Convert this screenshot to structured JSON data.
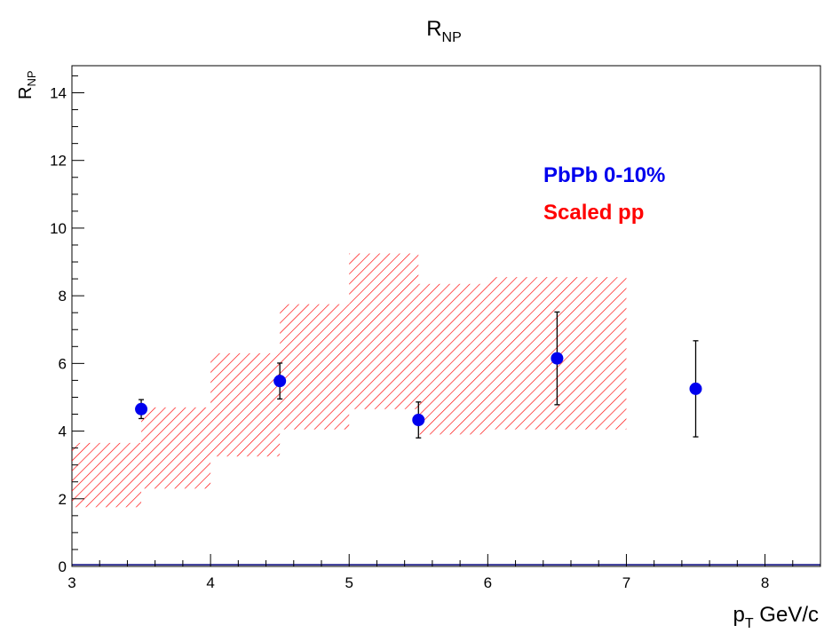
{
  "chart_data": {
    "type": "scatter",
    "title": "R",
    "title_sub": "NP",
    "ylabel": "R",
    "ylabel_sub": "NP",
    "xlabel_main": "p",
    "xlabel_sub": "T",
    "xlabel_tail": " GeV/c",
    "xlim": [
      3,
      8.4
    ],
    "ylim": [
      0,
      14.8
    ],
    "x_ticks": [
      3,
      4,
      5,
      6,
      7,
      8
    ],
    "y_ticks": [
      0,
      2,
      4,
      6,
      8,
      10,
      12,
      14
    ],
    "grid": false,
    "legend_position": "top-right, inside plot",
    "colors": {
      "pbpb": "#0000ee",
      "pp": "#ff0000",
      "baseline": "#00007a",
      "axis": "#000000"
    },
    "series": [
      {
        "name": "PbPb 0-10%",
        "marker": "filled-circle",
        "points": [
          {
            "x": 3.5,
            "y": 4.65,
            "err": 0.28
          },
          {
            "x": 4.5,
            "y": 5.48,
            "err": 0.53
          },
          {
            "x": 5.5,
            "y": 4.33,
            "err": 0.53
          },
          {
            "x": 6.5,
            "y": 6.15,
            "err": 1.37
          },
          {
            "x": 7.5,
            "y": 5.25,
            "err": 1.42
          }
        ]
      },
      {
        "name": "Scaled pp",
        "style": "hatched-band",
        "bands": [
          {
            "x0": 3.0,
            "x1": 3.5,
            "y_low": 1.75,
            "y_high": 3.65
          },
          {
            "x0": 3.5,
            "x1": 4.0,
            "y_low": 2.3,
            "y_high": 4.7
          },
          {
            "x0": 4.0,
            "x1": 4.5,
            "y_low": 3.25,
            "y_high": 6.3
          },
          {
            "x0": 4.5,
            "x1": 5.0,
            "y_low": 4.05,
            "y_high": 7.75
          },
          {
            "x0": 5.0,
            "x1": 5.5,
            "y_low": 4.65,
            "y_high": 9.25
          },
          {
            "x0": 5.5,
            "x1": 6.0,
            "y_low": 3.9,
            "y_high": 8.35
          },
          {
            "x0": 6.0,
            "x1": 7.0,
            "y_low": 4.05,
            "y_high": 8.55
          }
        ]
      }
    ],
    "baseline_y": 0.05
  }
}
